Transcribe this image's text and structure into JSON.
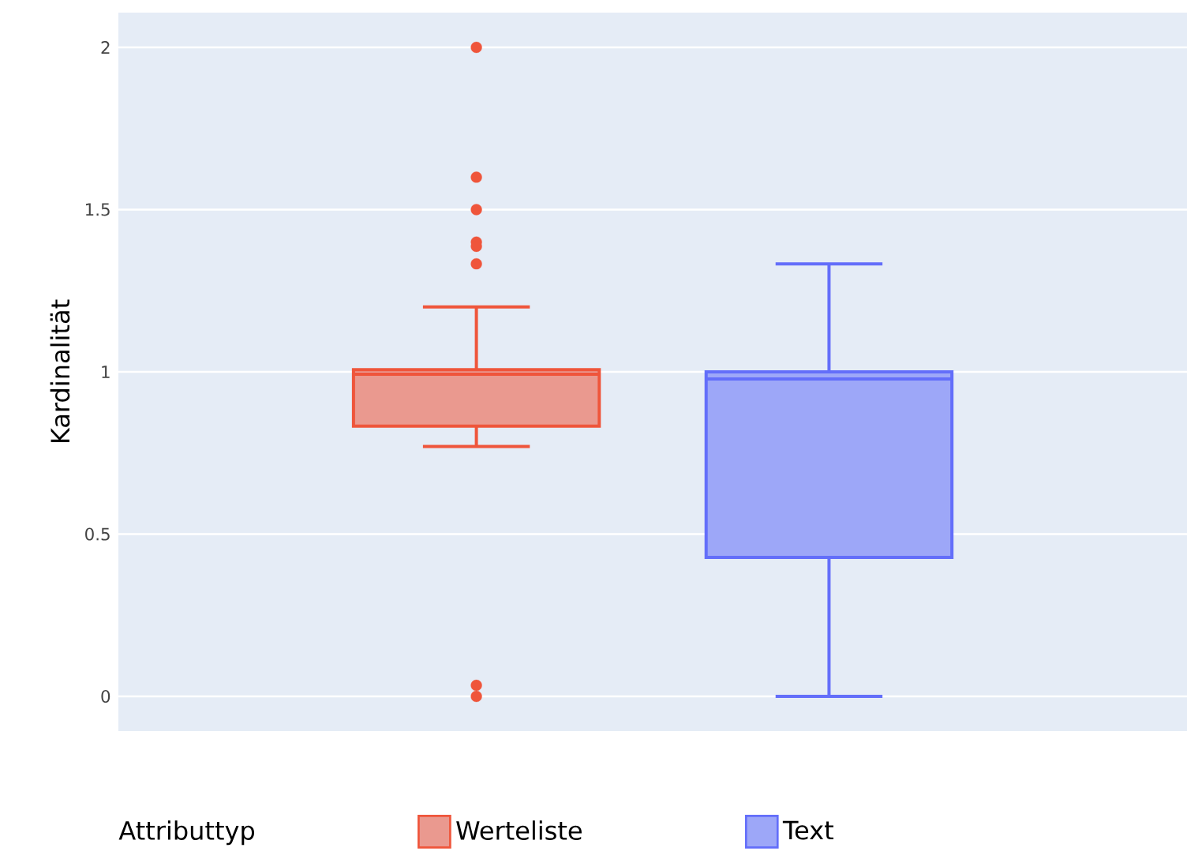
{
  "chart_data": {
    "type": "box",
    "ylabel": "Kardinalität",
    "legend_title": "Attributtyp",
    "legend": "bottom",
    "grid": "y",
    "categories": [
      null
    ],
    "ylim": [
      -0.107,
      2.107
    ],
    "yticks": [
      0,
      0.5,
      1,
      1.5,
      2
    ],
    "series": [
      {
        "name": "Werteliste",
        "color": "#ef553b",
        "boxes": [
          {
            "low": 0.77,
            "q1": 0.833,
            "median": 0.993,
            "q3": 1.007,
            "high": 1.2,
            "outliers": [
              2,
              1.6,
              1.5,
              1.4,
              1.387,
              1.333,
              0.034,
              0
            ]
          }
        ]
      },
      {
        "name": "Text",
        "color": "#636efa",
        "boxes": [
          {
            "low": 0,
            "q1": 0.428,
            "median": 0.978,
            "q3": 1.0,
            "high": 1.333
          }
        ]
      }
    ]
  }
}
